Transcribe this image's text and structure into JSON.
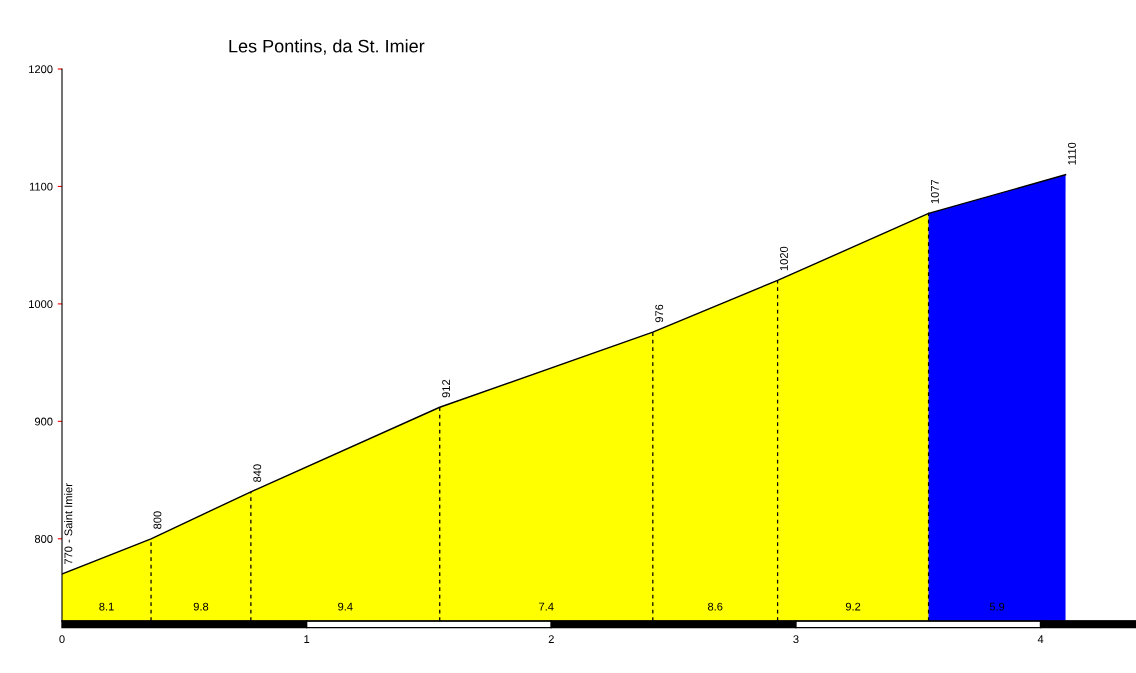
{
  "chart_data": {
    "type": "area",
    "title": "Les Pontins, da St. Imier",
    "series": [
      {
        "color": "#ffff00",
        "x": [
          0,
          0.364,
          0.772,
          1.544,
          2.415,
          2.925,
          3.542
        ],
        "values": [
          770,
          800,
          840,
          912,
          976,
          1020,
          1077
        ],
        "value_labels": [
          "770 - Saint Imier",
          "800",
          "840",
          "912",
          "976",
          "1020",
          "1077"
        ]
      },
      {
        "color": "#0000ff",
        "x": [
          3.542,
          4.102
        ],
        "values": [
          1077,
          1110
        ],
        "value_labels": [
          null,
          "1110"
        ]
      }
    ],
    "annotations": [
      "8.1",
      "9.8",
      "9.4",
      "7.4",
      "8.6",
      "9.2",
      "5.9"
    ],
    "xlim": [
      0,
      4.39
    ],
    "xticks": [
      0,
      1,
      2,
      3,
      4
    ],
    "ylim": [
      730,
      1200
    ],
    "yticks": [
      800,
      900,
      1000,
      1100,
      1200
    ],
    "grid": false,
    "legend": false
  }
}
